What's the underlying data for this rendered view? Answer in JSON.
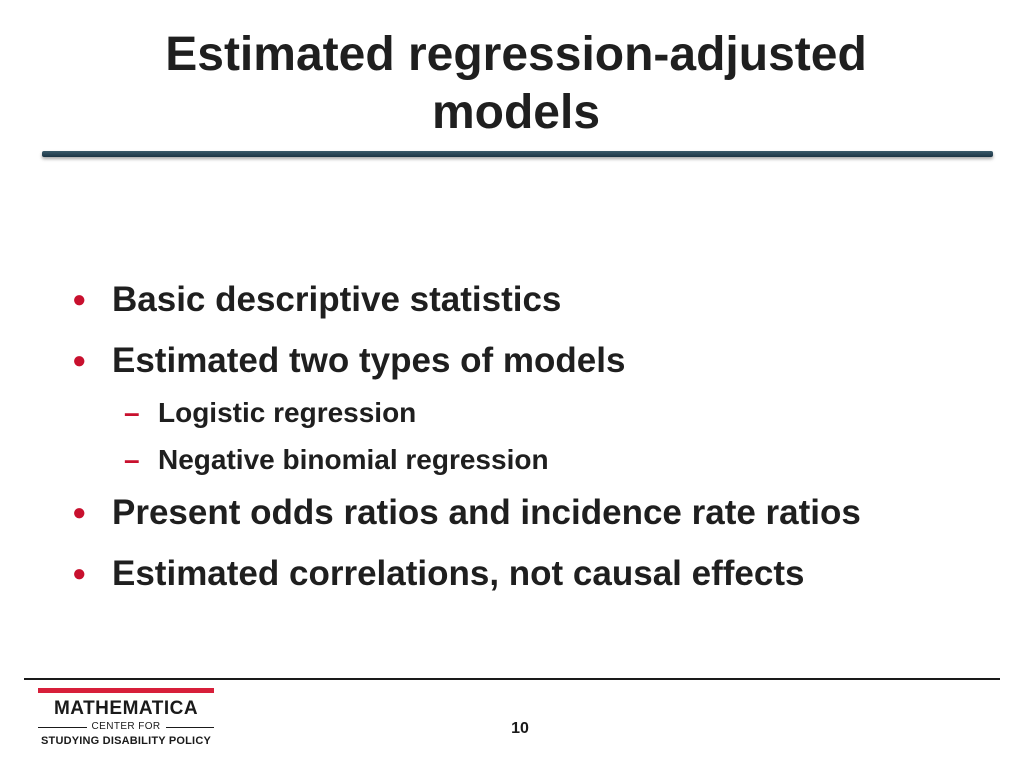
{
  "slide": {
    "title_line1": "Estimated regression-adjusted",
    "title_line2": "models",
    "bullets": [
      {
        "marker": "●",
        "text": "Basic descriptive statistics"
      },
      {
        "marker": "●",
        "text": "Estimated two types of models"
      },
      {
        "marker": "–",
        "text": "Logistic regression"
      },
      {
        "marker": "–",
        "text": "Negative binomial regression"
      },
      {
        "marker": "●",
        "text": "Present odds ratios and incidence rate ratios"
      },
      {
        "marker": "●",
        "text": "Estimated correlations, not causal effects"
      }
    ],
    "page_number": "10"
  },
  "logo": {
    "name": "MATHEMATICA",
    "line2": "CENTER FOR",
    "line3": "STUDYING DISABILITY POLICY"
  },
  "colors": {
    "bullet": "#c8102e",
    "title_rule": "#1b3444",
    "logo_accent": "#d71f3a"
  }
}
